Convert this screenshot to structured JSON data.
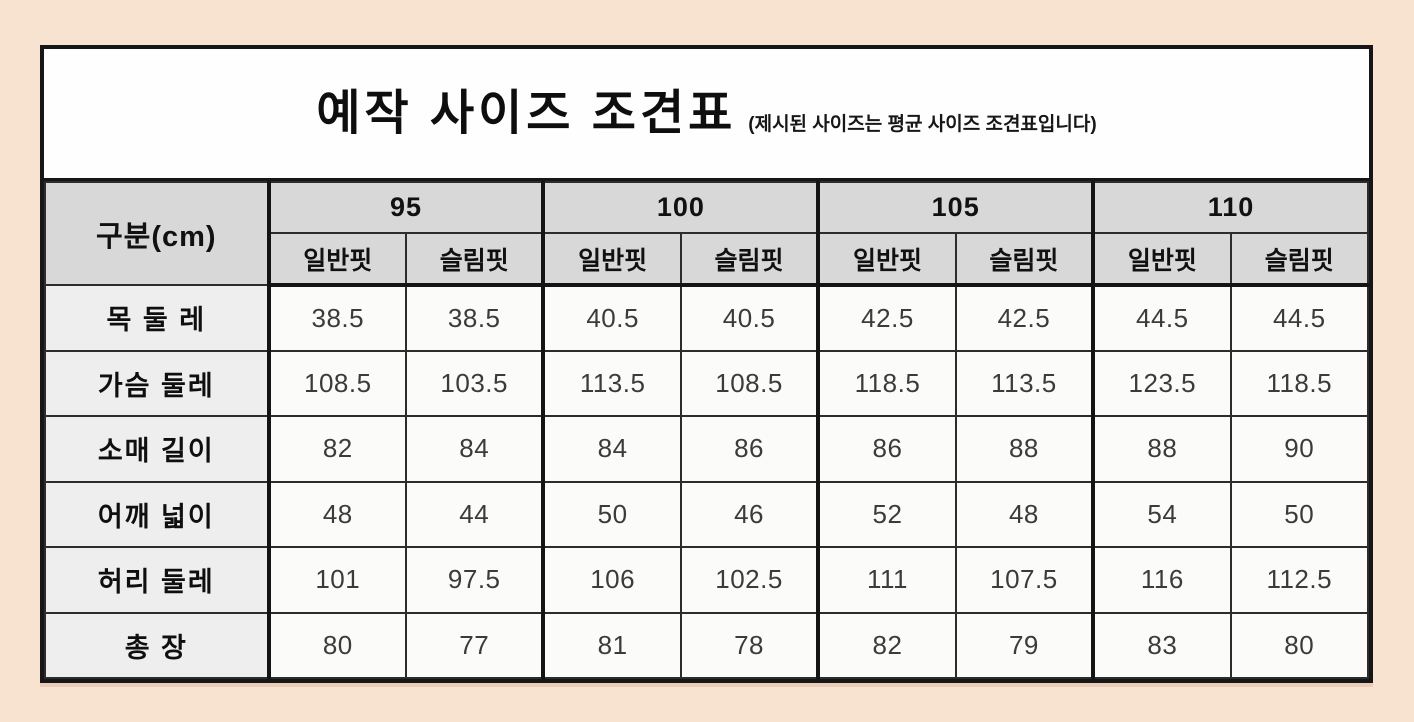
{
  "colors": {
    "page_background": "#f8e3d0",
    "panel_background": "#fdfdfd",
    "panel_border": "#161616",
    "header_background": "#d8d8d8",
    "row_label_background": "#efeeee",
    "value_text": "#3b3b3b"
  },
  "title": {
    "main": "예작 사이즈 조견표",
    "note": "(제시된 사이즈는 평균 사이즈 조견표입니다)"
  },
  "table": {
    "corner_label": "구분(cm)",
    "size_groups": [
      "95",
      "100",
      "105",
      "110"
    ],
    "fit_labels": [
      "일반핏",
      "슬림핏"
    ],
    "rows": [
      {
        "label": "목 둘 레",
        "values": [
          "38.5",
          "38.5",
          "40.5",
          "40.5",
          "42.5",
          "42.5",
          "44.5",
          "44.5"
        ]
      },
      {
        "label": "가슴 둘레",
        "values": [
          "108.5",
          "103.5",
          "113.5",
          "108.5",
          "118.5",
          "113.5",
          "123.5",
          "118.5"
        ]
      },
      {
        "label": "소매 길이",
        "values": [
          "82",
          "84",
          "84",
          "86",
          "86",
          "88",
          "88",
          "90"
        ]
      },
      {
        "label": "어깨 넓이",
        "values": [
          "48",
          "44",
          "50",
          "46",
          "52",
          "48",
          "54",
          "50"
        ]
      },
      {
        "label": "허리 둘레",
        "values": [
          "101",
          "97.5",
          "106",
          "102.5",
          "111",
          "107.5",
          "116",
          "112.5"
        ]
      },
      {
        "label": "총 장",
        "values": [
          "80",
          "77",
          "81",
          "78",
          "82",
          "79",
          "83",
          "80"
        ]
      }
    ]
  }
}
